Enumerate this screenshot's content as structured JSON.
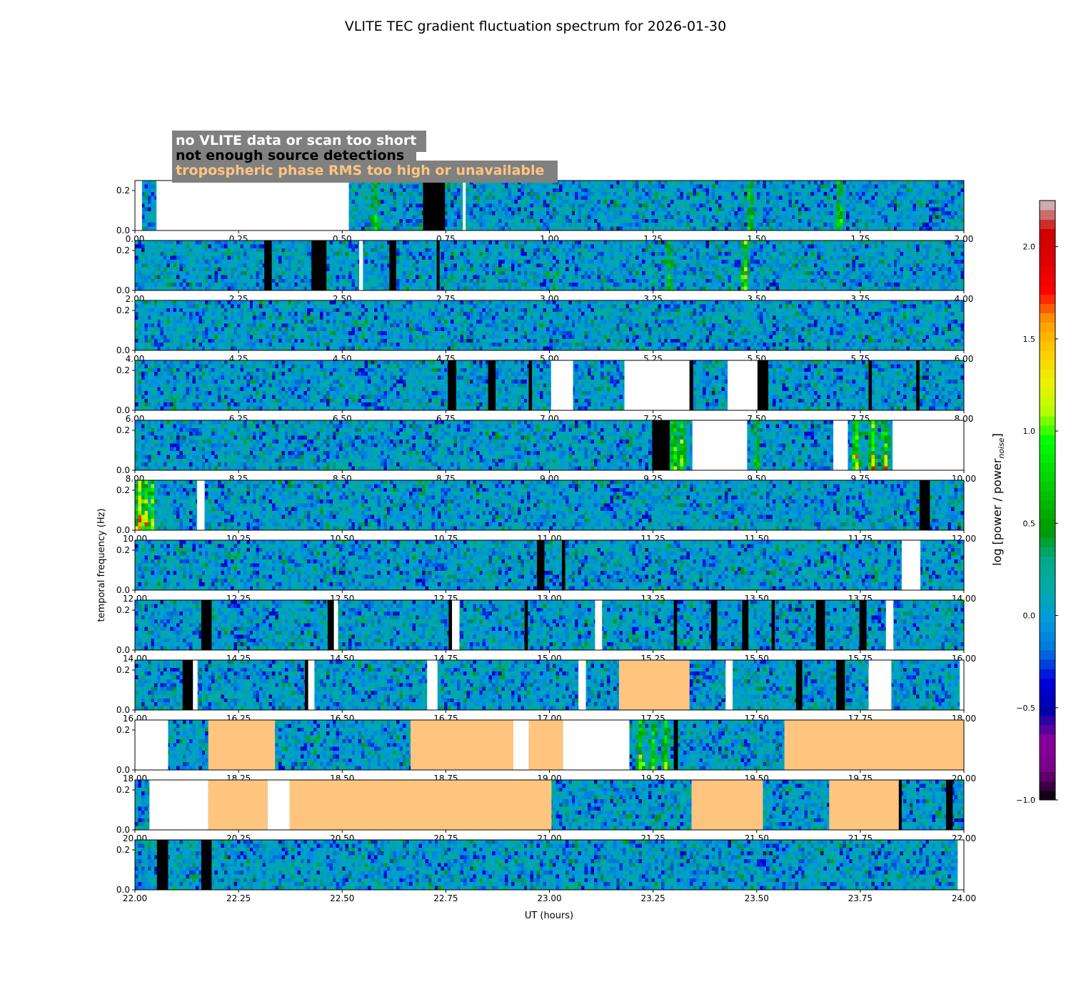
{
  "chart_data": {
    "type": "heatmap",
    "title": "VLITE TEC gradient fluctuation spectrum for 2026-01-30",
    "xlabel": "UT (hours)",
    "ylabel": "temporal frequency (Hz)",
    "colorbar_label": "log [power / power",
    "colorbar_label_sub": "noise",
    "colorbar_label_end": "]",
    "colorbar_range": [
      -1.0,
      2.25
    ],
    "colorbar_ticks": [
      "-1.0",
      "-0.5",
      "0.0",
      "0.5",
      "1.0",
      "1.5",
      "2.0"
    ],
    "colorbar_tick_values": [
      -1.0,
      -0.5,
      0.0,
      0.5,
      1.0,
      1.5,
      2.0
    ],
    "colormap": "nipy_spectral",
    "ylim": [
      0,
      0.25
    ],
    "y_ticks": [
      "0.0",
      "0.2"
    ],
    "y_tick_values": [
      0.0,
      0.2
    ],
    "grid": false,
    "legend": {
      "placement": "top-left",
      "background": "#808080",
      "entries": [
        {
          "label": "no VLITE data or scan too short",
          "color": "#ffffff"
        },
        {
          "label": "not enough source detections",
          "color": "#000000"
        },
        {
          "label": "tropospheric phase RMS too high or unavailable",
          "color": "#ffc57f"
        }
      ]
    },
    "panels": [
      {
        "x_range": [
          0,
          2
        ],
        "x_ticks": [
          "0.00",
          "0.25",
          "0.50",
          "0.75",
          "1.00",
          "1.25",
          "1.50",
          "1.75",
          "2.00"
        ],
        "intervals": [
          {
            "type": "nodata",
            "start": 0.0,
            "end": 0.017
          },
          {
            "type": "nodata",
            "start": 0.052,
            "end": 0.516
          },
          {
            "type": "detect",
            "start": 0.695,
            "end": 0.748
          },
          {
            "type": "nodata",
            "start": 0.791,
            "end": 0.798
          }
        ],
        "hot": [
          {
            "t": 0.58,
            "level": 0.9
          },
          {
            "t": 1.485,
            "level": 0.8
          },
          {
            "t": 1.7,
            "level": 0.9
          }
        ]
      },
      {
        "x_range": [
          2,
          4
        ],
        "x_ticks": [
          "2.00",
          "2.25",
          "2.50",
          "2.75",
          "3.00",
          "3.25",
          "3.50",
          "3.75",
          "4.00"
        ],
        "intervals": [
          {
            "type": "detect",
            "start": 2.312,
            "end": 2.33
          },
          {
            "type": "detect",
            "start": 2.426,
            "end": 2.462
          },
          {
            "type": "nodata",
            "start": 2.541,
            "end": 2.55
          },
          {
            "type": "detect",
            "start": 2.614,
            "end": 2.63
          },
          {
            "type": "detect",
            "start": 2.728,
            "end": 2.735
          }
        ],
        "hot": [
          {
            "t": 3.47,
            "level": 1.6
          },
          {
            "t": 3.29,
            "level": 0.8
          }
        ]
      },
      {
        "x_range": [
          4,
          6
        ],
        "x_ticks": [
          "4.00",
          "4.25",
          "4.50",
          "4.75",
          "5.00",
          "5.25",
          "5.50",
          "5.75",
          "6.00"
        ],
        "intervals": [],
        "hot": []
      },
      {
        "x_range": [
          6,
          8
        ],
        "x_ticks": [
          "6.00",
          "6.25",
          "6.50",
          "6.75",
          "7.00",
          "7.25",
          "7.50",
          "7.75",
          "8.00"
        ],
        "intervals": [
          {
            "type": "detect",
            "start": 6.755,
            "end": 6.775
          },
          {
            "type": "detect",
            "start": 6.852,
            "end": 6.87
          },
          {
            "type": "detect",
            "start": 6.95,
            "end": 6.958
          },
          {
            "type": "nodata",
            "start": 7.004,
            "end": 7.057
          },
          {
            "type": "nodata",
            "start": 7.181,
            "end": 7.338
          },
          {
            "type": "detect",
            "start": 7.338,
            "end": 7.347
          },
          {
            "type": "nodata",
            "start": 7.43,
            "end": 7.502
          },
          {
            "type": "detect",
            "start": 7.502,
            "end": 7.528
          },
          {
            "type": "detect",
            "start": 7.77,
            "end": 7.778
          },
          {
            "type": "detect",
            "start": 7.885,
            "end": 7.893
          }
        ],
        "hot": []
      },
      {
        "x_range": [
          8,
          10
        ],
        "x_ticks": [
          "8.00",
          "8.25",
          "8.50",
          "8.75",
          "9.00",
          "9.25",
          "9.50",
          "9.75",
          "10.00"
        ],
        "intervals": [
          {
            "type": "detect",
            "start": 9.248,
            "end": 9.29
          },
          {
            "type": "nodata",
            "start": 9.345,
            "end": 9.477
          },
          {
            "type": "nodata",
            "start": 9.685,
            "end": 9.72
          },
          {
            "type": "nodata",
            "start": 9.828,
            "end": 10.0
          }
        ],
        "hot": [
          {
            "t": 9.3,
            "level": 1.4
          },
          {
            "t": 9.32,
            "level": 1.2
          },
          {
            "t": 9.5,
            "level": 0.9
          },
          {
            "t": 9.74,
            "level": 1.5
          },
          {
            "t": 9.78,
            "level": 1.4
          },
          {
            "t": 9.81,
            "level": 1.3
          }
        ]
      },
      {
        "x_range": [
          10,
          12
        ],
        "x_ticks": [
          "10.00",
          "10.25",
          "10.50",
          "10.75",
          "11.00",
          "11.25",
          "11.50",
          "11.75",
          "12.00"
        ],
        "intervals": [
          {
            "type": "nodata",
            "start": 10.15,
            "end": 10.168
          },
          {
            "type": "detect",
            "start": 11.893,
            "end": 11.918
          }
        ],
        "hot": [
          {
            "t": 10.01,
            "level": 1.9
          },
          {
            "t": 10.025,
            "level": 1.6
          },
          {
            "t": 10.04,
            "level": 1.3
          }
        ]
      },
      {
        "x_range": [
          12,
          14
        ],
        "x_ticks": [
          "12.00",
          "12.25",
          "12.50",
          "12.75",
          "13.00",
          "13.25",
          "13.50",
          "13.75",
          "14.00"
        ],
        "intervals": [
          {
            "type": "detect",
            "start": 12.97,
            "end": 12.988
          },
          {
            "type": "detect",
            "start": 13.03,
            "end": 13.038
          },
          {
            "type": "nodata",
            "start": 13.85,
            "end": 13.895
          }
        ],
        "hot": []
      },
      {
        "x_range": [
          14,
          16
        ],
        "x_ticks": [
          "14.00",
          "14.25",
          "14.50",
          "14.75",
          "15.00",
          "15.25",
          "15.50",
          "15.75",
          "16.00"
        ],
        "intervals": [
          {
            "type": "detect",
            "start": 14.16,
            "end": 14.185
          },
          {
            "type": "detect",
            "start": 14.465,
            "end": 14.48
          },
          {
            "type": "nodata",
            "start": 14.48,
            "end": 14.49
          },
          {
            "type": "detect",
            "start": 14.757,
            "end": 14.765
          },
          {
            "type": "nodata",
            "start": 14.765,
            "end": 14.783
          },
          {
            "type": "detect",
            "start": 14.94,
            "end": 14.948
          },
          {
            "type": "nodata",
            "start": 15.11,
            "end": 15.127
          },
          {
            "type": "detect",
            "start": 15.3,
            "end": 15.308
          },
          {
            "type": "detect",
            "start": 15.39,
            "end": 15.405
          },
          {
            "type": "detect",
            "start": 15.465,
            "end": 15.48
          },
          {
            "type": "detect",
            "start": 15.536,
            "end": 15.544
          },
          {
            "type": "detect",
            "start": 15.643,
            "end": 15.665
          },
          {
            "type": "detect",
            "start": 15.748,
            "end": 15.765
          },
          {
            "type": "nodata",
            "start": 15.812,
            "end": 15.83
          }
        ],
        "hot": []
      },
      {
        "x_range": [
          16,
          18
        ],
        "x_ticks": [
          "16.00",
          "16.25",
          "16.50",
          "16.75",
          "17.00",
          "17.25",
          "17.50",
          "17.75",
          "18.00"
        ],
        "intervals": [
          {
            "type": "detect",
            "start": 16.115,
            "end": 16.14
          },
          {
            "type": "nodata",
            "start": 16.14,
            "end": 16.151
          },
          {
            "type": "detect",
            "start": 16.41,
            "end": 16.418
          },
          {
            "type": "nodata",
            "start": 16.418,
            "end": 16.433
          },
          {
            "type": "nodata",
            "start": 16.705,
            "end": 16.73
          },
          {
            "type": "nodata",
            "start": 17.07,
            "end": 17.088
          },
          {
            "type": "tropo",
            "start": 17.168,
            "end": 17.338
          },
          {
            "type": "nodata",
            "start": 17.425,
            "end": 17.442
          },
          {
            "type": "detect",
            "start": 17.595,
            "end": 17.61
          },
          {
            "type": "detect",
            "start": 17.692,
            "end": 17.713
          },
          {
            "type": "nodata",
            "start": 17.77,
            "end": 17.825
          },
          {
            "type": "nodata",
            "start": 17.99,
            "end": 18.0
          }
        ],
        "hot": []
      },
      {
        "x_range": [
          18,
          20
        ],
        "x_ticks": [
          "18.00",
          "18.25",
          "18.50",
          "18.75",
          "19.00",
          "19.25",
          "19.50",
          "19.75",
          "20.00"
        ],
        "intervals": [
          {
            "type": "nodata",
            "start": 18.0,
            "end": 18.08
          },
          {
            "type": "tropo",
            "start": 18.177,
            "end": 18.338
          },
          {
            "type": "tropo",
            "start": 18.665,
            "end": 18.913
          },
          {
            "type": "nodata",
            "start": 18.913,
            "end": 18.95
          },
          {
            "type": "tropo",
            "start": 18.95,
            "end": 19.033
          },
          {
            "type": "nodata",
            "start": 19.033,
            "end": 19.193
          },
          {
            "type": "detect",
            "start": 19.3,
            "end": 19.31
          },
          {
            "type": "tropo",
            "start": 19.567,
            "end": 20.0
          }
        ],
        "hot": [
          {
            "t": 19.22,
            "level": 1.1
          },
          {
            "t": 19.25,
            "level": 0.9
          },
          {
            "t": 19.28,
            "level": 1.0
          }
        ]
      },
      {
        "x_range": [
          20,
          22
        ],
        "x_ticks": [
          "20.00",
          "20.25",
          "20.50",
          "20.75",
          "21.00",
          "21.25",
          "21.50",
          "21.75",
          "22.00"
        ],
        "intervals": [
          {
            "type": "nodata",
            "start": 20.035,
            "end": 20.177
          },
          {
            "type": "tropo",
            "start": 20.177,
            "end": 20.32
          },
          {
            "type": "nodata",
            "start": 20.32,
            "end": 20.373
          },
          {
            "type": "tropo",
            "start": 20.373,
            "end": 21.005
          },
          {
            "type": "tropo",
            "start": 21.343,
            "end": 21.515
          },
          {
            "type": "tropo",
            "start": 21.675,
            "end": 21.843
          },
          {
            "type": "detect",
            "start": 21.843,
            "end": 21.85
          },
          {
            "type": "detect",
            "start": 21.957,
            "end": 21.973
          }
        ],
        "hot": []
      },
      {
        "x_range": [
          22,
          24
        ],
        "x_ticks": [
          "22.00",
          "22.25",
          "22.50",
          "22.75",
          "23.00",
          "23.25",
          "23.50",
          "23.75",
          "24.00"
        ],
        "intervals": [
          {
            "type": "detect",
            "start": 22.053,
            "end": 22.08
          },
          {
            "type": "detect",
            "start": 22.16,
            "end": 22.185
          },
          {
            "type": "nodata",
            "start": 23.985,
            "end": 24.0
          }
        ],
        "hot": []
      }
    ]
  }
}
